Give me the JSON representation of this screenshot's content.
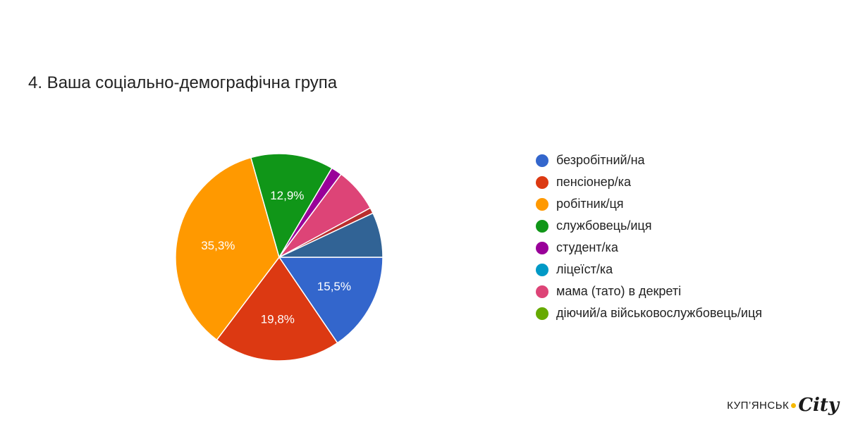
{
  "chart_data": {
    "type": "pie",
    "title": "4. Ваша соціально-демографічна група",
    "legend_position": "right",
    "slices": [
      {
        "label": "безробітний/на",
        "value": 15.5,
        "data_label": "15,5%",
        "color": "#3366cc"
      },
      {
        "label": "пенсіонер/ка",
        "value": 19.8,
        "data_label": "19,8%",
        "color": "#dc3912"
      },
      {
        "label": "робітник/ця",
        "value": 35.3,
        "data_label": "35,3%",
        "color": "#ff9900"
      },
      {
        "label": "службовець/иця",
        "value": 12.9,
        "data_label": "12,9%",
        "color": "#109618"
      },
      {
        "label": "студент/ка",
        "value": 1.7,
        "data_label": "",
        "color": "#990099"
      },
      {
        "label": "ліцеїст/ка",
        "value": 0,
        "data_label": "",
        "color": "#0099c6"
      },
      {
        "label": "мама (тато) в декреті",
        "value": 6.9,
        "data_label": "",
        "color": "#dd4477"
      },
      {
        "label": "діючий/а військовослужбовець/иця",
        "value": 0,
        "data_label": "",
        "color": "#66aa00"
      },
      {
        "label": "",
        "value": 0.9,
        "data_label": "",
        "color": "#b82e2e",
        "in_legend": false
      },
      {
        "label": "",
        "value": 7.0,
        "data_label": "",
        "color": "#316395",
        "in_legend": false
      }
    ]
  },
  "brand": {
    "text": "КУП’ЯНСЬК",
    "script": "City",
    "dot_color": "#f5b800"
  }
}
